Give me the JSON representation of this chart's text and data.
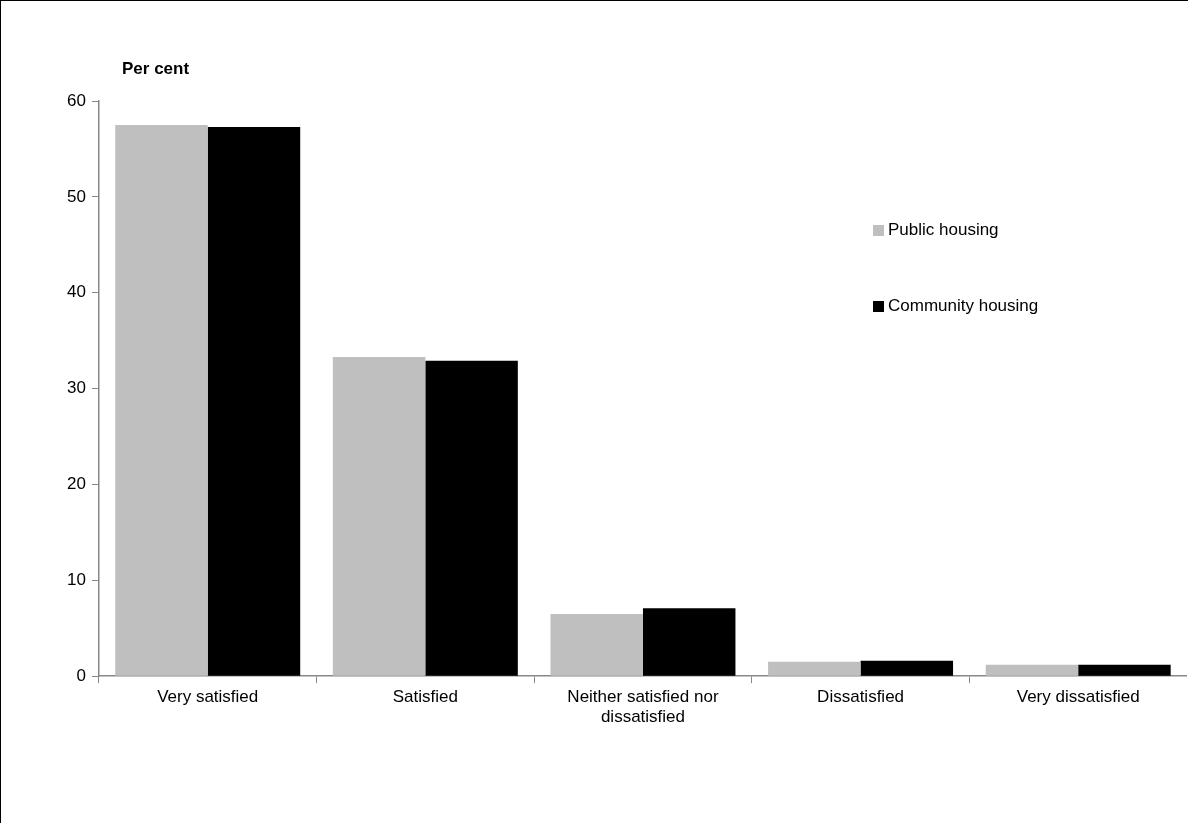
{
  "chart_data": {
    "type": "bar",
    "ylabel": "Per cent",
    "categories": [
      "Very satisfied",
      "Satisfied",
      "Neither satisfied nor dissatisfied",
      "Dissatisfied",
      "Very dissatisfied"
    ],
    "series": [
      {
        "name": "Public housing",
        "color": "#bfbfbf",
        "values": [
          57.5,
          33.3,
          6.5,
          1.5,
          1.2
        ]
      },
      {
        "name": "Community housing",
        "color": "#000000",
        "values": [
          57.3,
          32.9,
          7.1,
          1.6,
          1.2
        ]
      }
    ],
    "ylim": [
      0,
      60
    ],
    "yticks": [
      0,
      10,
      20,
      30,
      40,
      50,
      60
    ],
    "grid": false,
    "legend": "top right"
  }
}
